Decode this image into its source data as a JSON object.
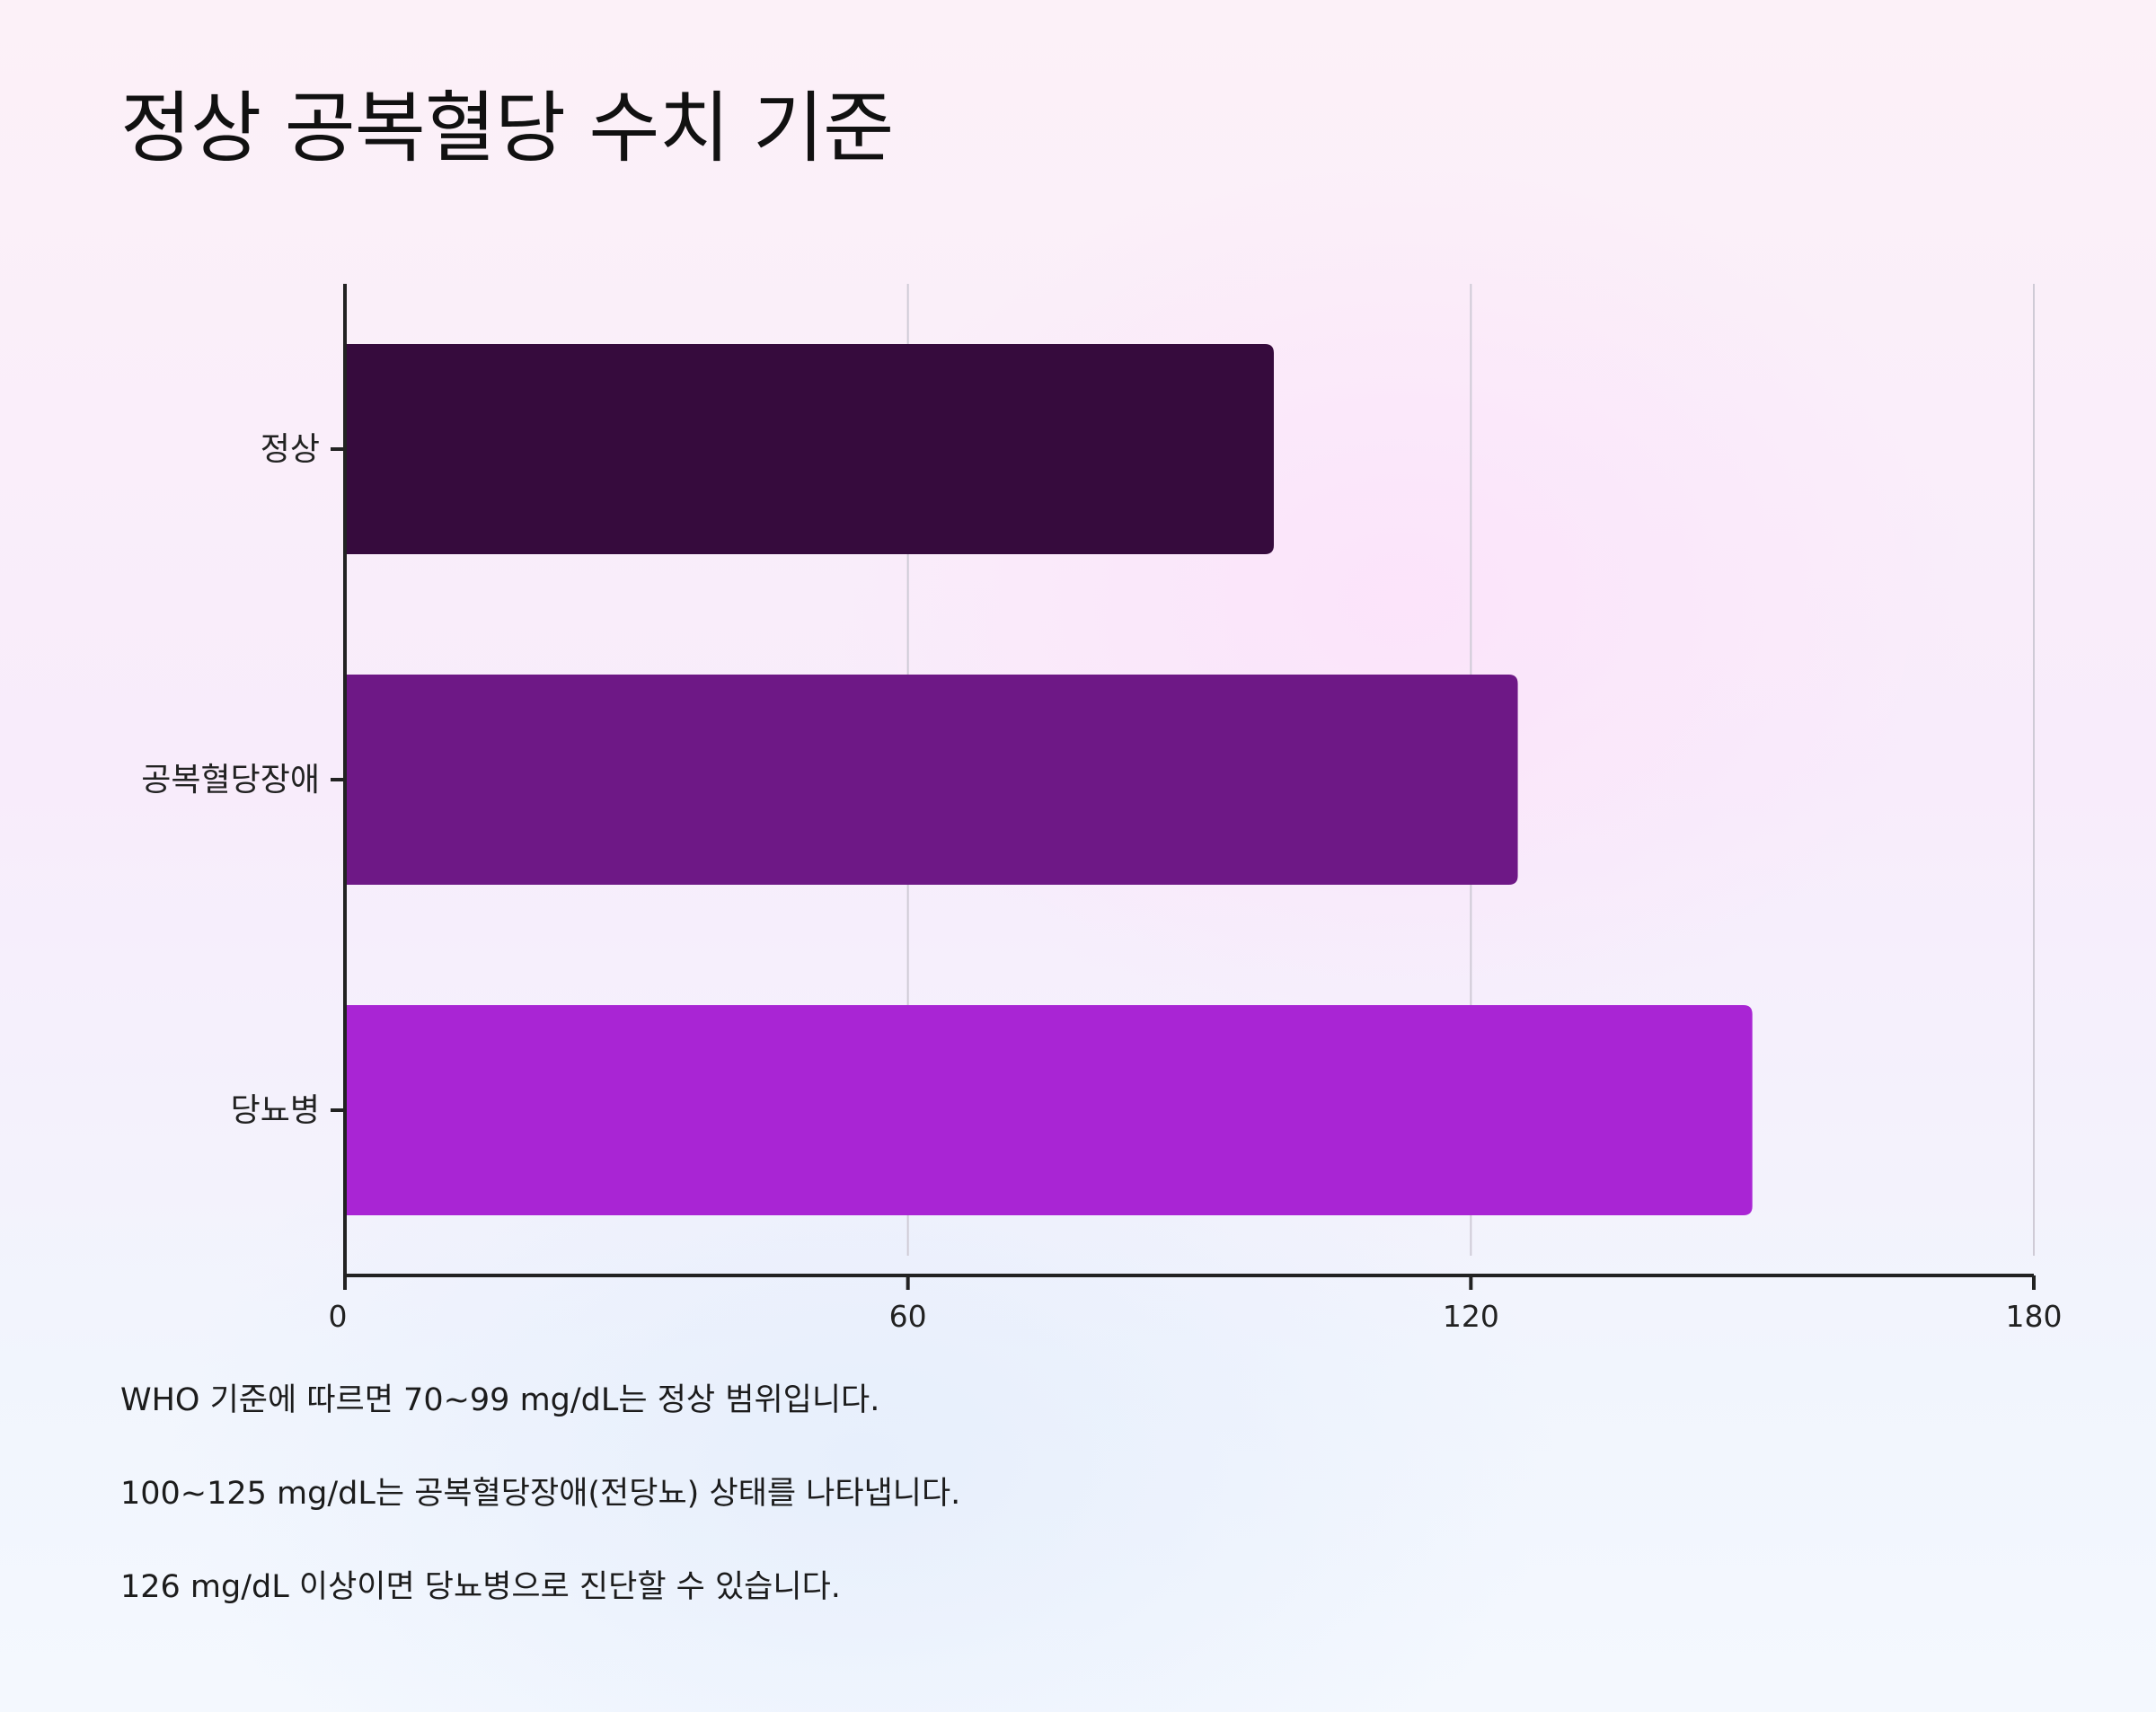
{
  "title": "정상 공복혈당 수치 기준",
  "chart_data": {
    "type": "bar",
    "orientation": "horizontal",
    "categories": [
      "정상",
      "공복혈당장애",
      "당뇨병"
    ],
    "values": [
      99,
      125,
      150
    ],
    "colors": [
      "#360b3d",
      "#6e1886",
      "#a925d4"
    ],
    "xlim": [
      0,
      180
    ],
    "xticks": [
      0,
      60,
      120,
      180
    ],
    "grid": "vertical",
    "legend": "none"
  },
  "notes": [
    "WHO 기준에 따르면 70~99 mg/dL는 정상 범위입니다.",
    "100~125 mg/dL는 공복혈당장애(전당뇨) 상태를 나타냅니다.",
    "126 mg/dL 이상이면 당뇨병으로 진단할 수 있습니다."
  ]
}
